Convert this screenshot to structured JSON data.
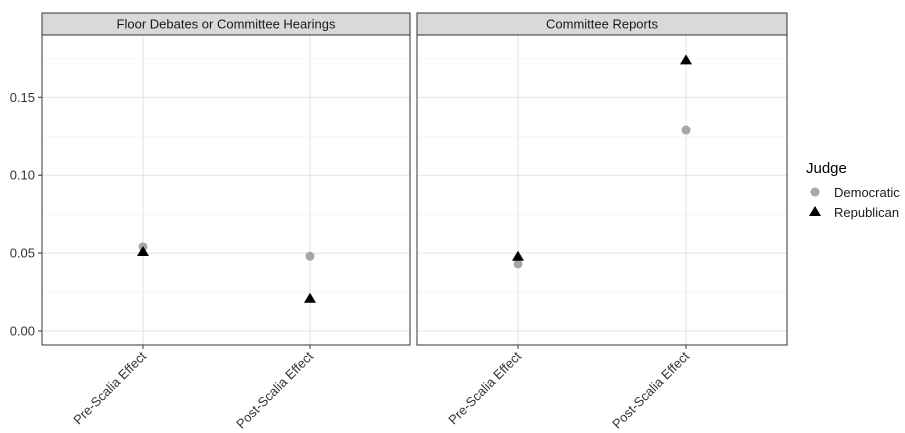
{
  "chart_data": {
    "type": "scatter",
    "categories": [
      "Pre-Scalia Effect",
      "Post-Scalia Effect"
    ],
    "y_ticks": [
      "0.00",
      "0.05",
      "0.10",
      "0.15"
    ],
    "y_tick_values": [
      0,
      0.05,
      0.1,
      0.15
    ],
    "ylim": [
      -0.009,
      0.19
    ],
    "grid": true,
    "legend": {
      "title": "Judge",
      "position": "right",
      "entries": [
        {
          "name": "Democratic",
          "shape": "circle",
          "color": "#a6a6a6"
        },
        {
          "name": "Republican",
          "shape": "triangle",
          "color": "#000000"
        }
      ]
    },
    "panels": [
      {
        "title": "Floor Debates or Committee Hearings",
        "series": [
          {
            "name": "Democratic",
            "values": [
              0.054,
              0.048
            ]
          },
          {
            "name": "Republican",
            "values": [
              0.051,
              0.021
            ]
          }
        ]
      },
      {
        "title": "Committee Reports",
        "series": [
          {
            "name": "Democratic",
            "values": [
              0.043,
              0.129
            ]
          },
          {
            "name": "Republican",
            "values": [
              0.048,
              0.174
            ]
          }
        ]
      }
    ]
  }
}
